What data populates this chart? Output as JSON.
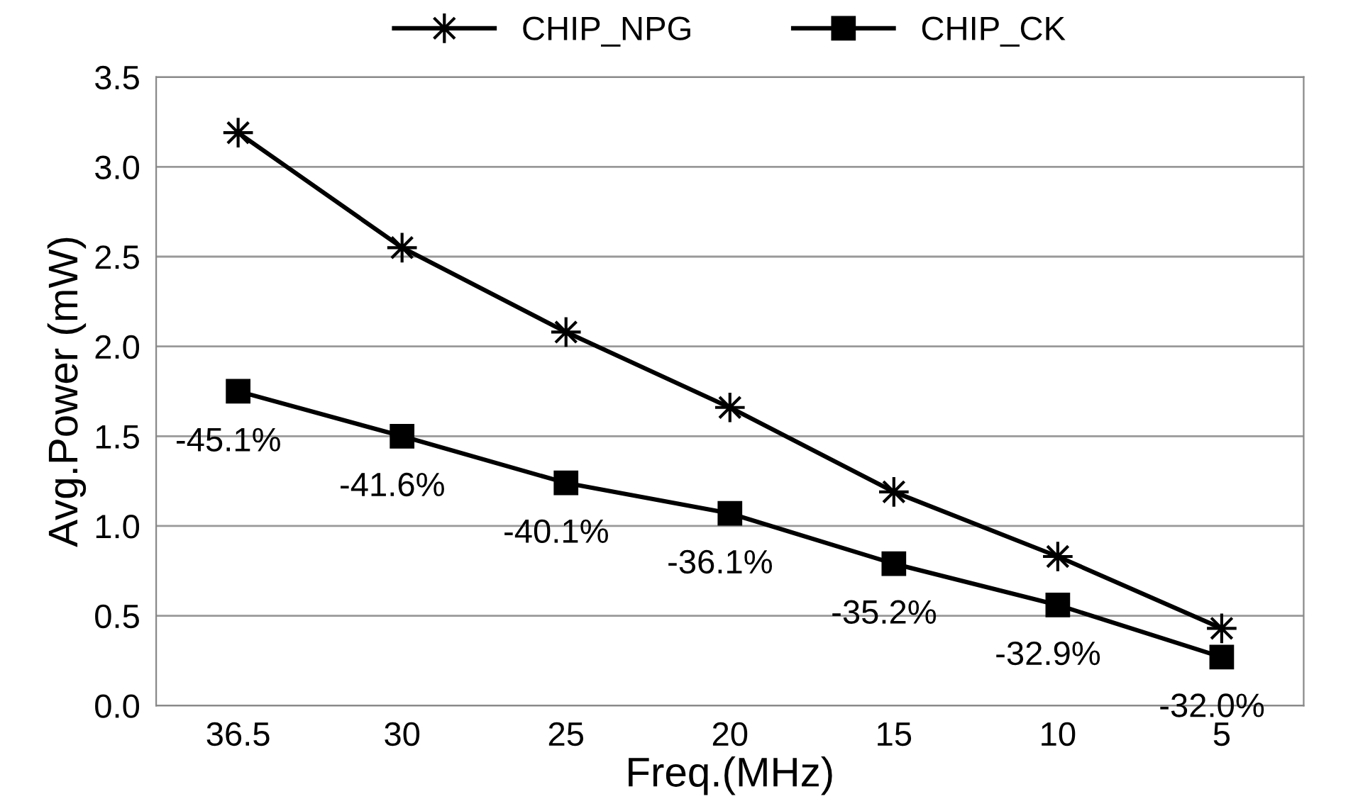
{
  "chart_data": {
    "type": "line",
    "xlabel": "Freq.(MHz)",
    "ylabel": "Avg.Power (mW)",
    "categories": [
      "36.5",
      "30",
      "25",
      "20",
      "15",
      "10",
      "5"
    ],
    "series": [
      {
        "name": "CHIP_NPG",
        "color": "#000000",
        "marker": "star",
        "values": [
          3.19,
          2.55,
          2.08,
          1.66,
          1.19,
          0.83,
          0.43
        ]
      },
      {
        "name": "CHIP_CK",
        "color": "#000000",
        "marker": "square",
        "values": [
          1.75,
          1.5,
          1.24,
          1.07,
          0.79,
          0.56,
          0.27
        ]
      }
    ],
    "ylim": [
      0,
      3.5
    ],
    "yticks": [
      {
        "value": 0,
        "label": "0.0"
      },
      {
        "value": 0.5,
        "label": "0.5"
      },
      {
        "value": 1,
        "label": "1.0"
      },
      {
        "value": 1.5,
        "label": "1.5"
      },
      {
        "value": 2,
        "label": "2.0"
      },
      {
        "value": 2.5,
        "label": "2.5"
      },
      {
        "value": 3,
        "label": "3.0"
      },
      {
        "value": 3.5,
        "label": "3.5"
      }
    ],
    "grid": "y",
    "legend": "top",
    "line_style": "solid",
    "annotations": [
      {
        "text": "-45.1%",
        "x": "36.5",
        "y": 1.75
      },
      {
        "text": "-41.6%",
        "x": "30",
        "y": 1.5
      },
      {
        "text": "-40.1%",
        "x": "25",
        "y": 1.24
      },
      {
        "text": "-36.1%",
        "x": "20",
        "y": 1.07
      },
      {
        "text": "-35.2%",
        "x": "15",
        "y": 0.79
      },
      {
        "text": "-32.9%",
        "x": "10",
        "y": 0.56
      },
      {
        "text": "-32.0%",
        "x": "5",
        "y": 0.27
      }
    ]
  }
}
